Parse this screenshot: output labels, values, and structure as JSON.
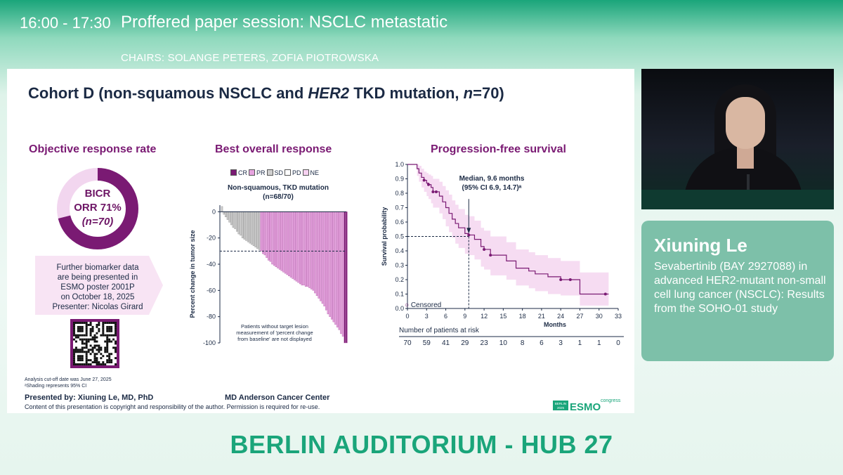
{
  "header": {
    "time": "16:00 - 17:30",
    "session_title": "Proffered paper session: NSCLC metastatic",
    "chairs": "CHAIRS: SOLANGE PETERS, ZOFIA PIOTROWSKA"
  },
  "slide": {
    "title_prefix": "Cohort D (non-squamous NSCLC and ",
    "title_italic1": "HER2",
    "title_mid": " TKD mutation, ",
    "title_italic2": "n",
    "title_suffix": "=70)",
    "orr": {
      "heading": "Objective response rate",
      "line1": "BICR",
      "line2": "ORR 71%",
      "line3": "(n=70)",
      "value": 0.71,
      "colors": {
        "filled": "#7a1a73",
        "remaining": "#f2d6ef"
      }
    },
    "biomarker_note": [
      "Further biomarker data",
      "are being presented in",
      "ESMO poster 2001P",
      "on October 18, 2025",
      "Presenter: Nicolas Girard"
    ],
    "footnotes": [
      "Analysis cut-off date was June 27, 2025",
      "ᵃShading represents 95% CI"
    ],
    "presented_by": "Presented by: Xiuning Le, MD, PhD",
    "institution": "MD Anderson Cancer Center",
    "copyright": "Content of this presentation is copyright and responsibility of the author. Permission is required for re-use.",
    "esmo_logo": {
      "city": "BERLIN",
      "year": "2025",
      "brand": "ESMO",
      "word": "congress"
    }
  },
  "speaker": {
    "name": "Xiuning Le",
    "talk": "Sevabertinib (BAY 2927088) in advanced HER2-mutant non-small cell lung cancer (NSCLC): Results from the SOHO-01 study"
  },
  "room": "BERLIN AUDITORIUM - HUB 27",
  "chart_data": [
    {
      "type": "bar",
      "title": "Best overall response",
      "subtitle_line1": "Non-squamous, TKD mutation",
      "subtitle_line2": "(n=68/70)",
      "ylabel": "Percent change in tumor size",
      "ylim": [
        -100,
        5
      ],
      "yticks": [
        0,
        -20,
        -40,
        -60,
        -80,
        -100
      ],
      "legend": [
        {
          "label": "CR",
          "color": "#7a1a73"
        },
        {
          "label": "PR",
          "color": "#e6a3df"
        },
        {
          "label": "SD",
          "color": "#cfcfcf"
        },
        {
          "label": "PD",
          "color": "#ffffff"
        },
        {
          "label": "NE",
          "color": "#f6d2f0"
        }
      ],
      "reference_line": -30,
      "note": "Patients without target lesion measurement of 'percent change from baseline' are not displayed",
      "values": [
        4,
        -2,
        -4,
        -6,
        -8,
        -10,
        -12,
        -13,
        -15,
        -17,
        -18,
        -20,
        -21,
        -22,
        -23,
        -24,
        -25,
        -26,
        -27,
        -28,
        -29,
        -30,
        -32,
        -33,
        -35,
        -37,
        -38,
        -40,
        -41,
        -42,
        -43,
        -44,
        -45,
        -46,
        -47,
        -48,
        -49,
        -50,
        -51,
        -52,
        -53,
        -54,
        -55,
        -56,
        -56,
        -57,
        -57,
        -58,
        -59,
        -60,
        -62,
        -64,
        -66,
        -68,
        -70,
        -72,
        -75,
        -78,
        -80,
        -82,
        -84,
        -86,
        -88,
        -90,
        -93,
        -95,
        -100,
        -100
      ],
      "categories_by_index": "SD for values > -30, PR for values <= -30, CR for final two"
    },
    {
      "type": "line",
      "title": "Progression-free survival",
      "xlabel": "Months",
      "ylabel": "Survival probability",
      "xlim": [
        0,
        33
      ],
      "ylim": [
        0,
        1.0
      ],
      "xticks": [
        0,
        3,
        6,
        9,
        12,
        15,
        18,
        21,
        24,
        27,
        30,
        33
      ],
      "yticks": [
        0,
        0.1,
        0.2,
        0.3,
        0.4,
        0.5,
        0.6,
        0.7,
        0.8,
        0.9,
        1.0
      ],
      "median_label_line1": "Median, 9.6 months",
      "median_label_line2": "(95% CI 6.9, 14.7)ᵃ",
      "median": 9.6,
      "censored_label": "Censored",
      "series": [
        {
          "x": [
            0,
            1.5,
            1.8,
            2.2,
            2.6,
            3.0,
            3.3,
            3.7,
            4.0,
            4.5,
            5.0,
            5.5,
            6.0,
            6.5,
            7.0,
            7.5,
            8.0,
            9.0,
            9.6,
            10.5,
            11.5,
            12.0,
            13.0,
            14.0,
            15.5,
            17.0,
            19.0,
            20.0,
            22.0,
            24.0,
            25.5,
            27.0,
            31.0
          ],
          "y": [
            1.0,
            0.97,
            0.94,
            0.91,
            0.89,
            0.87,
            0.86,
            0.84,
            0.81,
            0.81,
            0.78,
            0.74,
            0.7,
            0.66,
            0.62,
            0.59,
            0.56,
            0.52,
            0.51,
            0.48,
            0.43,
            0.41,
            0.37,
            0.37,
            0.33,
            0.28,
            0.26,
            0.24,
            0.22,
            0.2,
            0.2,
            0.1,
            0.1
          ],
          "ci_low": [
            1.0,
            0.92,
            0.88,
            0.84,
            0.81,
            0.78,
            0.76,
            0.73,
            0.7,
            0.7,
            0.66,
            0.62,
            0.57,
            0.53,
            0.49,
            0.45,
            0.42,
            0.38,
            0.37,
            0.34,
            0.29,
            0.27,
            0.23,
            0.23,
            0.2,
            0.16,
            0.14,
            0.12,
            0.1,
            0.09,
            0.09,
            0.02,
            0.02
          ],
          "ci_high": [
            1.0,
            1.0,
            0.99,
            0.97,
            0.95,
            0.94,
            0.93,
            0.92,
            0.9,
            0.9,
            0.88,
            0.85,
            0.82,
            0.79,
            0.75,
            0.72,
            0.69,
            0.65,
            0.64,
            0.61,
            0.56,
            0.54,
            0.5,
            0.5,
            0.46,
            0.41,
            0.39,
            0.37,
            0.35,
            0.33,
            0.33,
            0.25,
            0.25
          ]
        }
      ],
      "censored_points": [
        [
          2.6,
          0.89
        ],
        [
          3.3,
          0.86
        ],
        [
          4.0,
          0.81
        ],
        [
          4.5,
          0.81
        ],
        [
          9.6,
          0.51
        ],
        [
          12.0,
          0.41
        ],
        [
          13.0,
          0.37
        ],
        [
          24.0,
          0.2
        ],
        [
          25.5,
          0.2
        ],
        [
          31.0,
          0.1
        ]
      ],
      "risk_table": {
        "title": "Number of patients at risk",
        "values": [
          "70",
          "59",
          "41",
          "29",
          "23",
          "10",
          "8",
          "6",
          "3",
          "1",
          "1",
          "0"
        ]
      }
    }
  ]
}
